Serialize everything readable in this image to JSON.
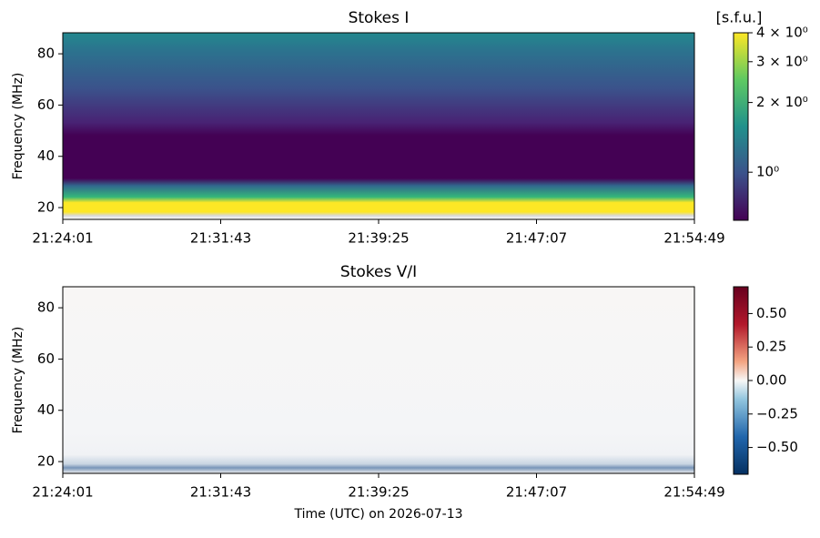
{
  "chart_data": [
    {
      "type": "heatmap",
      "title": "Stokes I",
      "ylabel": "Frequency (MHz)",
      "xlim": [
        77041,
        78889
      ],
      "xticks": [
        {
          "value": 77041,
          "label": "21:24:01"
        },
        {
          "value": 77503,
          "label": "21:31:43"
        },
        {
          "value": 77965,
          "label": "21:39:25"
        },
        {
          "value": 78427,
          "label": "21:47:07"
        },
        {
          "value": 78889,
          "label": "21:54:49"
        }
      ],
      "ylim": [
        15.4,
        88.2
      ],
      "yticks": [
        20,
        40,
        60,
        80
      ],
      "colormap": "viridis",
      "colorbar_label": "[s.f.u.]",
      "colorbar_log": true,
      "clim": [
        0.62,
        4
      ],
      "cticks": [
        {
          "value": 4,
          "label": "4 × 10⁰"
        },
        {
          "value": 3,
          "label": "3 × 10⁰"
        },
        {
          "value": 2,
          "label": "2 × 10⁰"
        },
        {
          "value": 1,
          "label": "10⁰"
        }
      ]
    },
    {
      "type": "heatmap",
      "title": "Stokes V/I",
      "ylabel": "Frequency (MHz)",
      "xlabel": "Time (UTC) on 2026-07-13",
      "xlim": [
        77041,
        78889
      ],
      "xticks": [
        {
          "value": 77041,
          "label": "21:24:01"
        },
        {
          "value": 77503,
          "label": "21:31:43"
        },
        {
          "value": 77965,
          "label": "21:39:25"
        },
        {
          "value": 78427,
          "label": "21:47:07"
        },
        {
          "value": 78889,
          "label": "21:54:49"
        }
      ],
      "ylim": [
        15.4,
        88.2
      ],
      "yticks": [
        20,
        40,
        60,
        80
      ],
      "colormap": "RdBu_r",
      "colorbar_log": false,
      "clim": [
        -0.7,
        0.7
      ],
      "cticks": [
        {
          "value": 0.5,
          "label": "0.50"
        },
        {
          "value": 0.25,
          "label": "0.25"
        },
        {
          "value": 0,
          "label": "0.00"
        },
        {
          "value": -0.25,
          "label": "−0.25"
        },
        {
          "value": -0.5,
          "label": "−0.50"
        }
      ]
    }
  ]
}
